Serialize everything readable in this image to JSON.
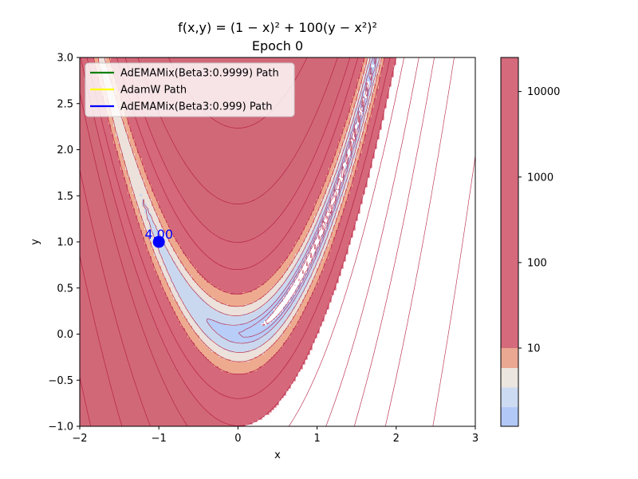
{
  "chart_data": {
    "type": "contour",
    "title": "f(x,y) = (1 − x)² + 100(y − x²)²",
    "subtitle": "Epoch 0",
    "xlabel": "x",
    "ylabel": "y",
    "xlim": [
      -2,
      3
    ],
    "ylim": [
      -1,
      3
    ],
    "xticks": [
      -2,
      -1,
      0,
      1,
      2,
      3
    ],
    "xtick_labels": [
      "−2",
      "−1",
      "0",
      "1",
      "2",
      "3"
    ],
    "yticks": [
      -1.0,
      -0.5,
      0.0,
      0.5,
      1.0,
      1.5,
      2.0,
      2.5,
      3.0
    ],
    "ytick_labels": [
      "−1.0",
      "−0.5",
      "0.0",
      "0.5",
      "1.0",
      "1.5",
      "2.0",
      "2.5",
      "3.0"
    ],
    "contour_levels": [
      0.1,
      0.5,
      1,
      2,
      5,
      10,
      20,
      50,
      100,
      200,
      500,
      1000,
      2000,
      5000,
      10000,
      20000,
      50000
    ],
    "colors": {
      "coolwarm": [
        "#b8cdf8",
        "#cad8ef",
        "#ece1db",
        "#eeaa8f",
        "#d5687a",
        "#d16878"
      ],
      "contour_line": "#b2183c",
      "min_region": "#ffffff"
    },
    "colorbar": {
      "ticks": [
        10,
        100,
        1000,
        10000
      ],
      "tick_labels": [
        "10",
        "100",
        "1000",
        "10000"
      ],
      "bands": [
        "#b2c8f7",
        "#cddbf2",
        "#ece6e0",
        "#eaa792",
        "#d46a7c"
      ]
    },
    "legend": {
      "placement": "upper-left",
      "entries": [
        {
          "label": "AdEMAMix(Beta3:0.9999) Path",
          "color": "#008000"
        },
        {
          "label": "AdamW Path",
          "color": "#ffff00"
        },
        {
          "label": "AdEMAMix(Beta3:0.999) Path",
          "color": "#0000ff"
        }
      ]
    },
    "points": [
      {
        "x": -1.0,
        "y": 1.0,
        "label": "4.00",
        "color": "#0000ff"
      }
    ]
  }
}
